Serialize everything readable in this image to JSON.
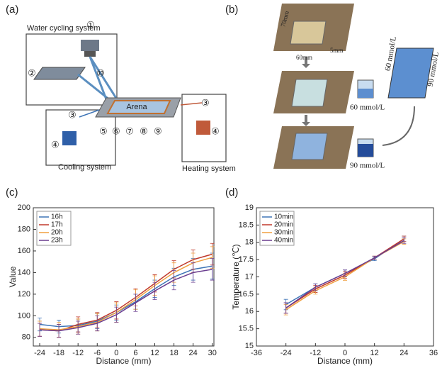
{
  "panel_labels": [
    "(a)",
    "(b)",
    "(c)",
    "(d)"
  ],
  "diagram_a": {
    "water": "Water cycling system",
    "arena": "Arena",
    "heating": "Heating system",
    "cooling": "Cooling system",
    "markers": [
      "①",
      "②",
      "⑩",
      "③",
      "④",
      "⑤",
      "⑥",
      "⑦",
      "⑧",
      "⑨",
      "③",
      "④"
    ]
  },
  "diagram_b": {
    "dims": [
      "70mm",
      "60mm",
      "5mm"
    ],
    "beakers": [
      "60 mmol/L",
      "90 mmol/L"
    ],
    "block": [
      "60 mmol/L",
      "90 mmol/L"
    ]
  },
  "chart_data": [
    {
      "type": "line",
      "xlabel": "Distance (mm)",
      "ylabel": "Value",
      "x": [
        -24,
        -18,
        -12,
        -6,
        0,
        6,
        12,
        18,
        24,
        30
      ],
      "xlim": [
        -26,
        30.5
      ],
      "ylim": [
        72,
        200
      ],
      "xticks": [
        -24,
        -18,
        -12,
        -6,
        0,
        6,
        12,
        18,
        24,
        30
      ],
      "yticks": [
        80,
        100,
        120,
        140,
        160,
        180,
        200
      ],
      "legend": "upper left",
      "series": [
        {
          "name": "16h",
          "color": "#3d74b6",
          "values": [
            92,
            90,
            91,
            95,
            103,
            113,
            125,
            136,
            143,
            146
          ],
          "errors": [
            6,
            6,
            6,
            7,
            7,
            7,
            8,
            8,
            10,
            12
          ]
        },
        {
          "name": "17h",
          "color": "#c0392b",
          "values": [
            87,
            86,
            92,
            96,
            105,
            117,
            130,
            143,
            152,
            157
          ],
          "errors": [
            6,
            6,
            7,
            7,
            8,
            8,
            8,
            8,
            9,
            10
          ]
        },
        {
          "name": "20h",
          "color": "#f0a040",
          "values": [
            88,
            87,
            90,
            94,
            103,
            115,
            128,
            140,
            149,
            154
          ],
          "errors": [
            7,
            7,
            7,
            8,
            9,
            9,
            9,
            9,
            9,
            10
          ]
        },
        {
          "name": "23h",
          "color": "#6a3d8f",
          "values": [
            87,
            86,
            89,
            93,
            101,
            112,
            123,
            133,
            140,
            143
          ],
          "errors": [
            6,
            6,
            6,
            7,
            7,
            8,
            8,
            9,
            9,
            10
          ]
        }
      ]
    },
    {
      "type": "line",
      "xlabel": "Distance (mm)",
      "ylabel": "Temperature (℃)",
      "x": [
        -24,
        -12,
        0,
        12,
        24
      ],
      "xlim": [
        -36,
        36
      ],
      "ylim": [
        15,
        19
      ],
      "xticks": [
        -36,
        -24,
        -12,
        0,
        12,
        24,
        36
      ],
      "yticks": [
        15,
        15.5,
        16,
        16.5,
        17,
        17.5,
        18,
        18.5,
        19
      ],
      "legend": "upper left",
      "series": [
        {
          "name": "10min",
          "color": "#3d74b6",
          "values": [
            16.2,
            16.7,
            17.1,
            17.52,
            18.1
          ],
          "errors": [
            0.15,
            0.1,
            0.1,
            0.05,
            0.08
          ]
        },
        {
          "name": "20min",
          "color": "#c0392b",
          "values": [
            16.1,
            16.65,
            17.05,
            17.55,
            18.1
          ],
          "errors": [
            0.15,
            0.1,
            0.1,
            0.05,
            0.08
          ]
        },
        {
          "name": "30min",
          "color": "#f0a040",
          "values": [
            16.05,
            16.6,
            17.0,
            17.55,
            18.02
          ],
          "errors": [
            0.15,
            0.1,
            0.1,
            0.05,
            0.08
          ]
        },
        {
          "name": "40min",
          "color": "#6a3d8f",
          "values": [
            16.1,
            16.7,
            17.1,
            17.55,
            18.05
          ],
          "errors": [
            0.15,
            0.1,
            0.1,
            0.05,
            0.08
          ]
        }
      ]
    }
  ]
}
